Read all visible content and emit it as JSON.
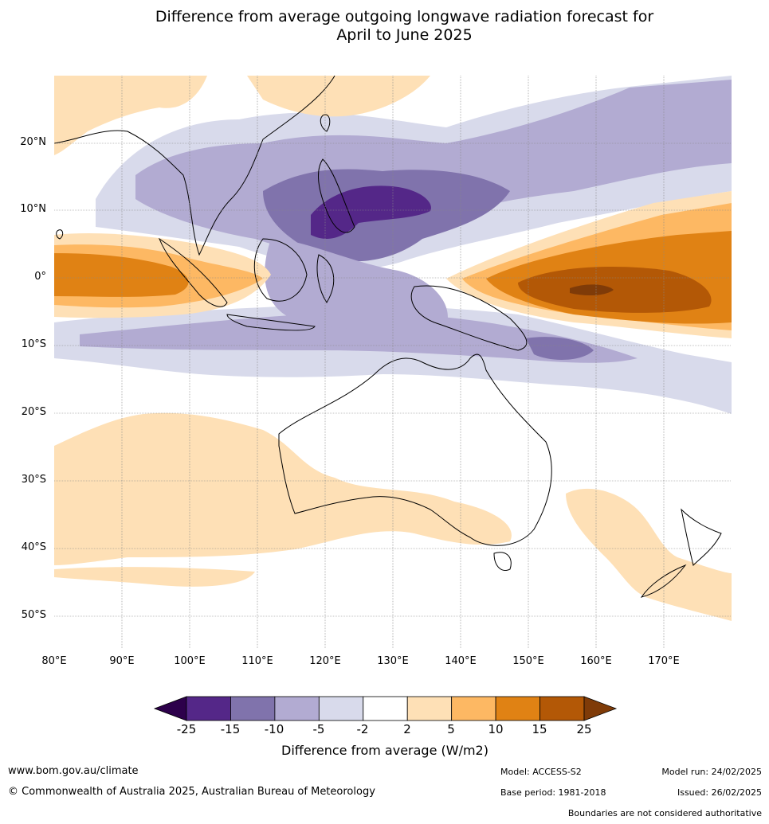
{
  "title_line1": "Difference from average outgoing longwave radiation forecast for",
  "title_line2": "April to June 2025",
  "lat_labels": [
    "20°N",
    "10°N",
    "0°",
    "10°S",
    "20°S",
    "30°S",
    "40°S",
    "50°S"
  ],
  "lon_labels": [
    "80°E",
    "90°E",
    "100°E",
    "110°E",
    "120°E",
    "130°E",
    "140°E",
    "150°E",
    "160°E",
    "170°E"
  ],
  "colorbar": {
    "title": "Difference from average (W/m2)",
    "ticks": [
      "-25",
      "-15",
      "-10",
      "-5",
      "-2",
      "2",
      "5",
      "10",
      "15",
      "25"
    ],
    "colors": [
      "#2d004b",
      "#542788",
      "#8073ac",
      "#b2abd2",
      "#d8daeb",
      "#ffffff",
      "#fee0b6",
      "#fdb863",
      "#e08214",
      "#b35806",
      "#7f3b08"
    ]
  },
  "footer": {
    "url": "www.bom.gov.au/climate",
    "copyright": "© Commonwealth of Australia 2025, Australian Bureau of Meteorology",
    "model": "Model: ACCESS-S2",
    "base_period": "Base period: 1981-2018",
    "model_run": "Model run: 24/02/2025",
    "issued": "Issued: 26/02/2025",
    "boundaries": "Boundaries are not considered authoritative"
  }
}
